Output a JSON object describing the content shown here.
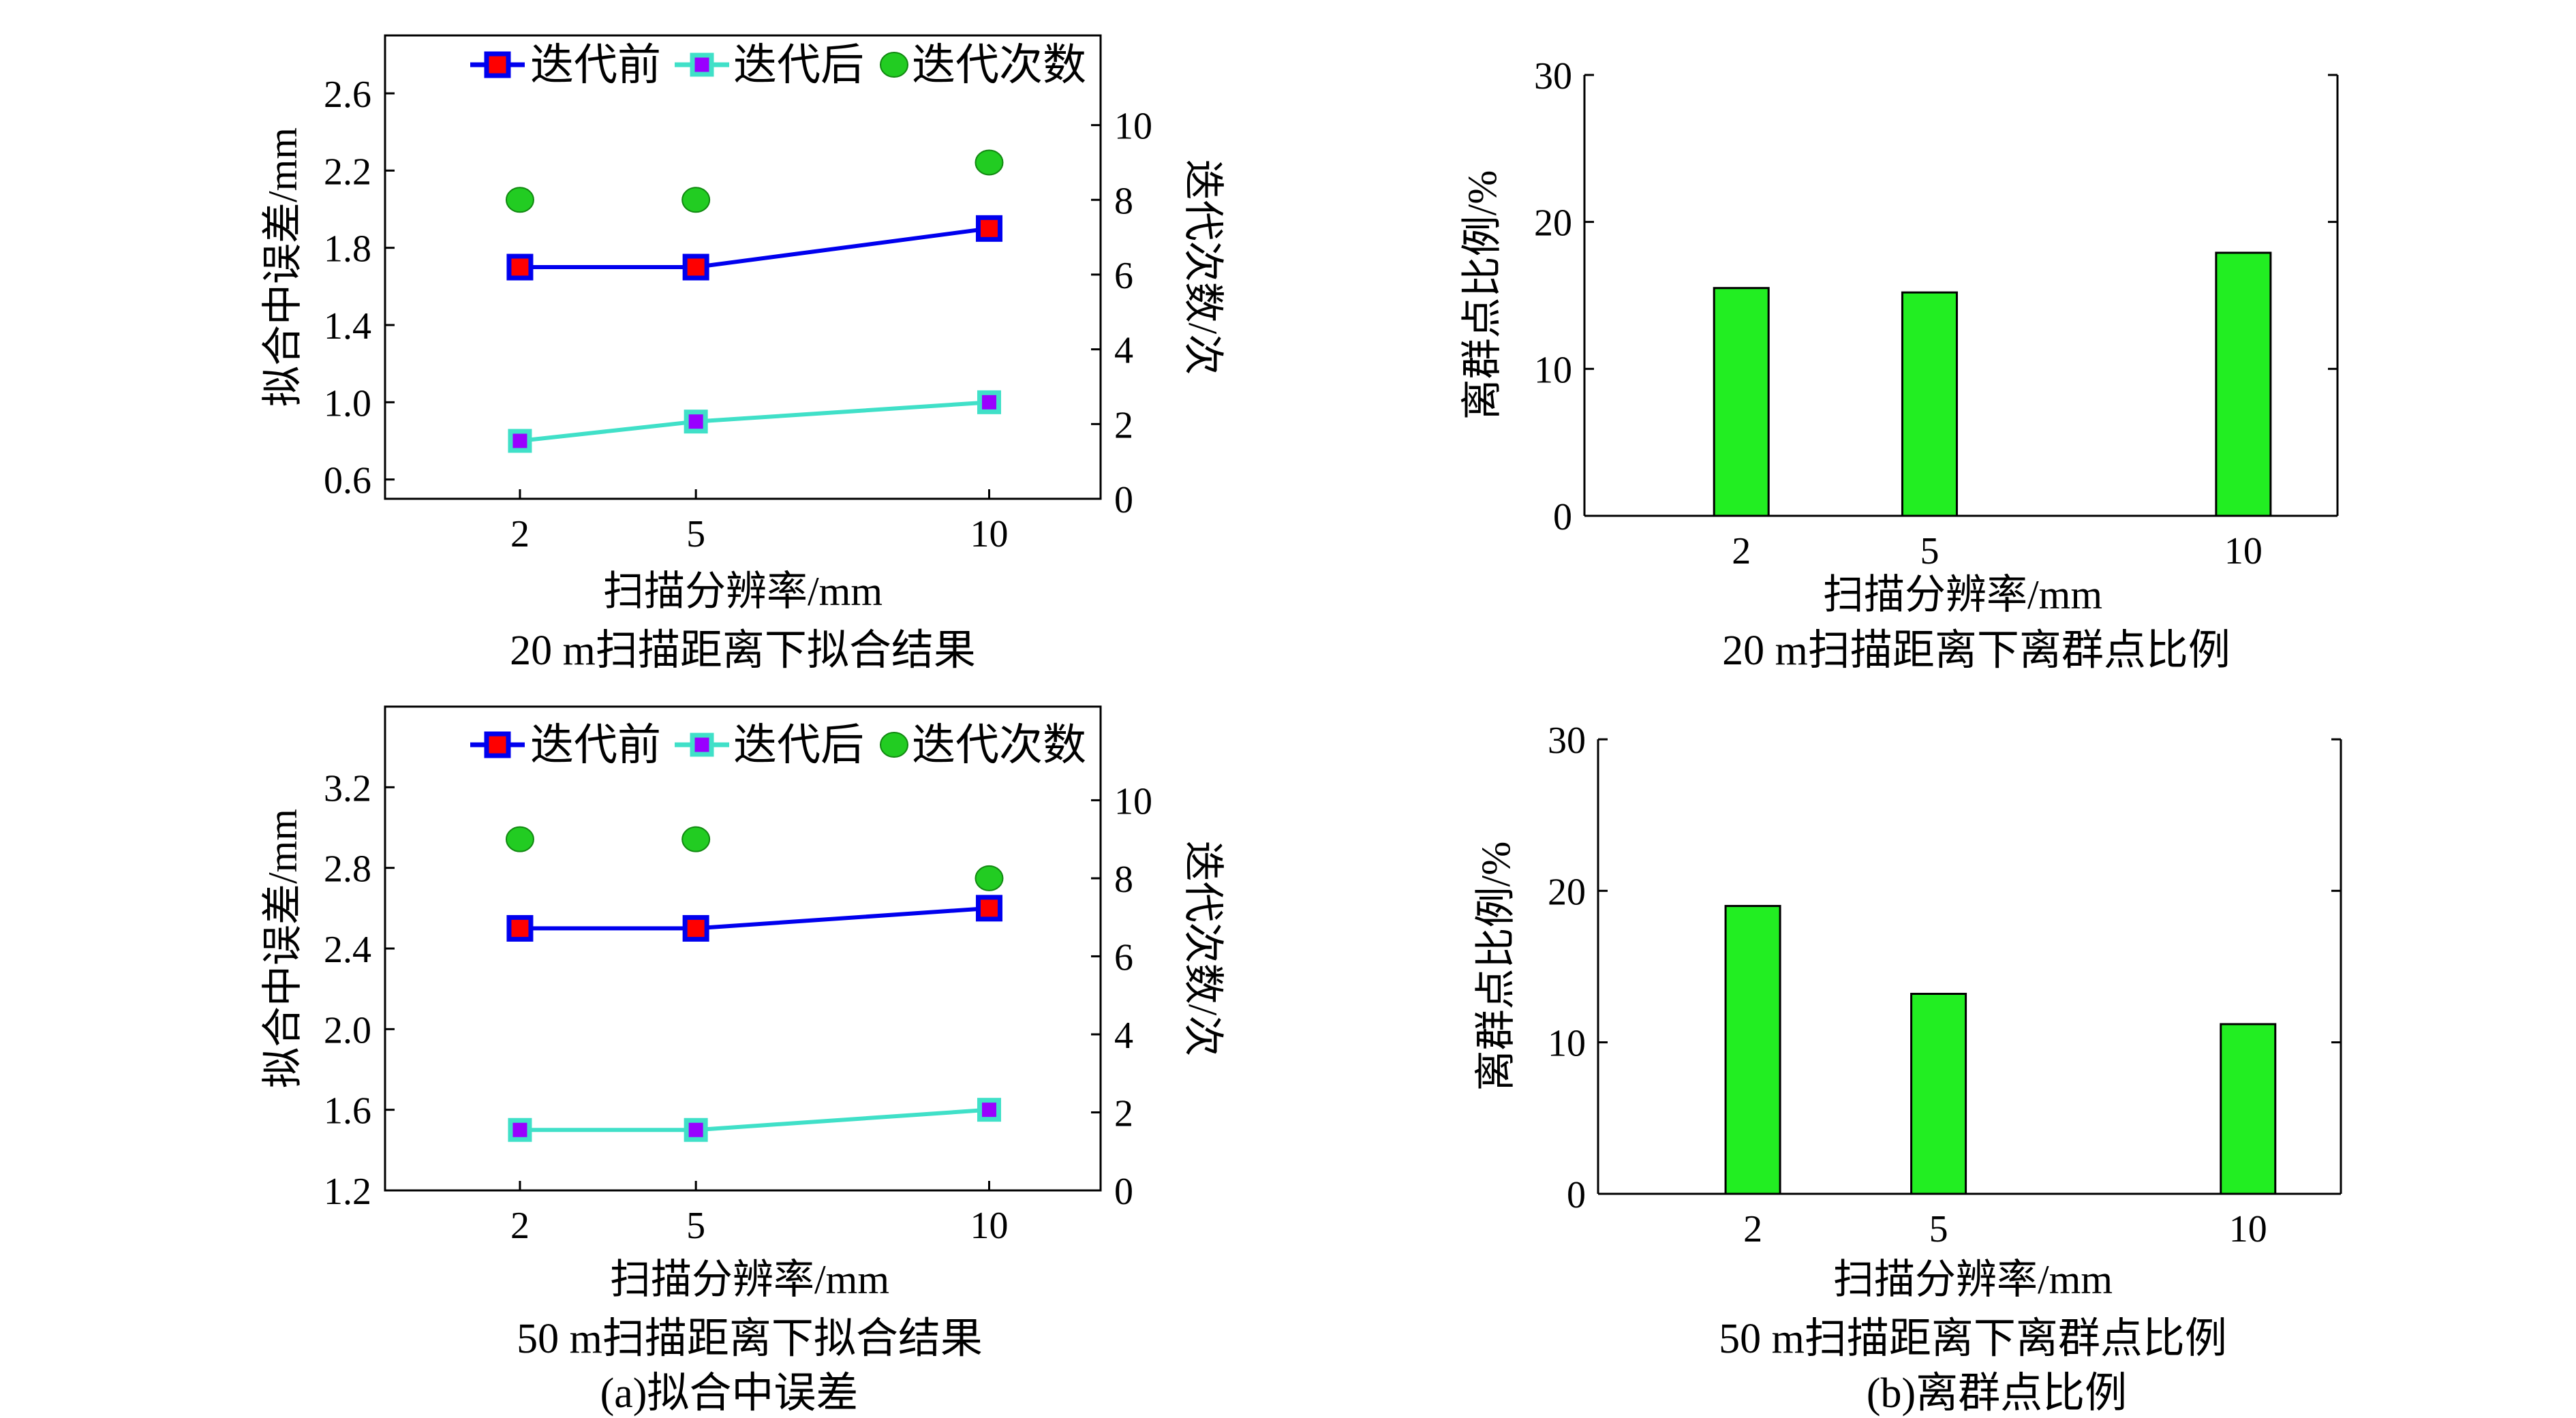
{
  "colors": {
    "before_line": "#0000ee",
    "before_marker": "#ff0000",
    "after_line": "#40e0c8",
    "after_marker": "#9900ff",
    "count_marker": "#22cc22",
    "bar_fill": "#22ee22"
  },
  "chart_data": [
    {
      "type": "line",
      "title": "20 m扫描距离下拟合结果",
      "xlabel": "扫描分辨率/mm",
      "ylabel": "拟合中误差/mm",
      "y2label": "迭代次数/次",
      "x": [
        2,
        5,
        10
      ],
      "xticks": [
        "2",
        "5",
        "10"
      ],
      "xlim": [
        -0.3,
        11.9
      ],
      "ylim": [
        0.5,
        2.9
      ],
      "yticks": [
        "0.6",
        "1.0",
        "1.4",
        "1.8",
        "2.2",
        "2.6"
      ],
      "y2lim": [
        0,
        12.4
      ],
      "y2ticks": [
        "0",
        "2",
        "4",
        "6",
        "8",
        "10"
      ],
      "legend": [
        "迭代前",
        "迭代后",
        "迭代次数"
      ],
      "series": [
        {
          "name": "迭代前",
          "values": [
            1.7,
            1.7,
            1.9
          ],
          "axis": "left"
        },
        {
          "name": "迭代后",
          "values": [
            0.8,
            0.9,
            1.0
          ],
          "axis": "left"
        },
        {
          "name": "迭代次数",
          "values": [
            8,
            8,
            9
          ],
          "axis": "right"
        }
      ]
    },
    {
      "type": "bar",
      "title": "20 m扫描距离下离群点比例",
      "xlabel": "扫描分辨率/mm",
      "ylabel": "离群点比例/%",
      "categories": [
        "2",
        "5",
        "10"
      ],
      "x": [
        2,
        5,
        10
      ],
      "values": [
        15.5,
        15.2,
        17.9
      ],
      "xlim": [
        -0.5,
        11.5
      ],
      "ylim": [
        0,
        30
      ],
      "yticks": [
        "0",
        "10",
        "20",
        "30"
      ]
    },
    {
      "type": "line",
      "title": "50 m扫描距离下拟合结果",
      "xlabel": "扫描分辨率/mm",
      "ylabel": "拟合中误差/mm",
      "y2label": "迭代次数/次",
      "x": [
        2,
        5,
        10
      ],
      "xticks": [
        "2",
        "5",
        "10"
      ],
      "xlim": [
        -0.3,
        11.9
      ],
      "ylim": [
        1.2,
        3.6
      ],
      "yticks": [
        "1.2",
        "1.6",
        "2.0",
        "2.4",
        "2.8",
        "3.2"
      ],
      "y2lim": [
        0,
        12.4
      ],
      "y2ticks": [
        "0",
        "2",
        "4",
        "6",
        "8",
        "10"
      ],
      "legend": [
        "迭代前",
        "迭代后",
        "迭代次数"
      ],
      "series": [
        {
          "name": "迭代前",
          "values": [
            2.5,
            2.5,
            2.6
          ],
          "axis": "left"
        },
        {
          "name": "迭代后",
          "values": [
            1.5,
            1.5,
            1.6
          ],
          "axis": "left"
        },
        {
          "name": "迭代次数",
          "values": [
            9,
            9,
            8
          ],
          "axis": "right"
        }
      ]
    },
    {
      "type": "bar",
      "title": "50 m扫描距离下离群点比例",
      "xlabel": "扫描分辨率/mm",
      "ylabel": "离群点比例/%",
      "categories": [
        "2",
        "5",
        "10"
      ],
      "x": [
        2,
        5,
        10
      ],
      "values": [
        19.0,
        13.2,
        11.2
      ],
      "xlim": [
        -0.5,
        11.5
      ],
      "ylim": [
        0,
        30
      ],
      "yticks": [
        "0",
        "10",
        "20",
        "30"
      ]
    }
  ],
  "captions": {
    "a": "(a)拟合中误差",
    "b": "(b)离群点比例"
  }
}
